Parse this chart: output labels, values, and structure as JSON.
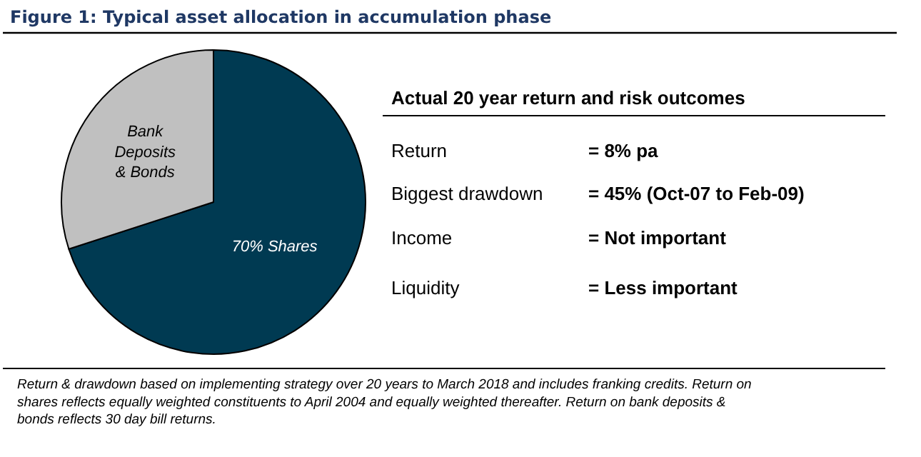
{
  "chart_data": [
    {
      "type": "pie",
      "title": "Figure 1: Typical asset allocation in accumulation phase",
      "categories": [
        "70% Shares",
        "Bank Deposits & Bonds"
      ],
      "values": [
        70,
        30
      ],
      "colors": [
        "#003a52",
        "#c0c0c0"
      ],
      "annotations": [
        "Return & drawdown based on implementing strategy over 20 years to March 2018 and includes franking credits. Return on shares reflects equally weighted constituents to April 2004 and equally weighted thereafter. Return on bank deposits & bonds reflects 30 day bill returns."
      ]
    },
    {
      "type": "other",
      "title": "Actual 20 year return and risk outcomes",
      "annotations": [
        "Return",
        "= 8% pa",
        "Biggest drawdown",
        "= 45% (Oct-07 to Feb-09)",
        "Income",
        "= Not important",
        "Liquidity",
        "= Less important"
      ]
    }
  ]
}
